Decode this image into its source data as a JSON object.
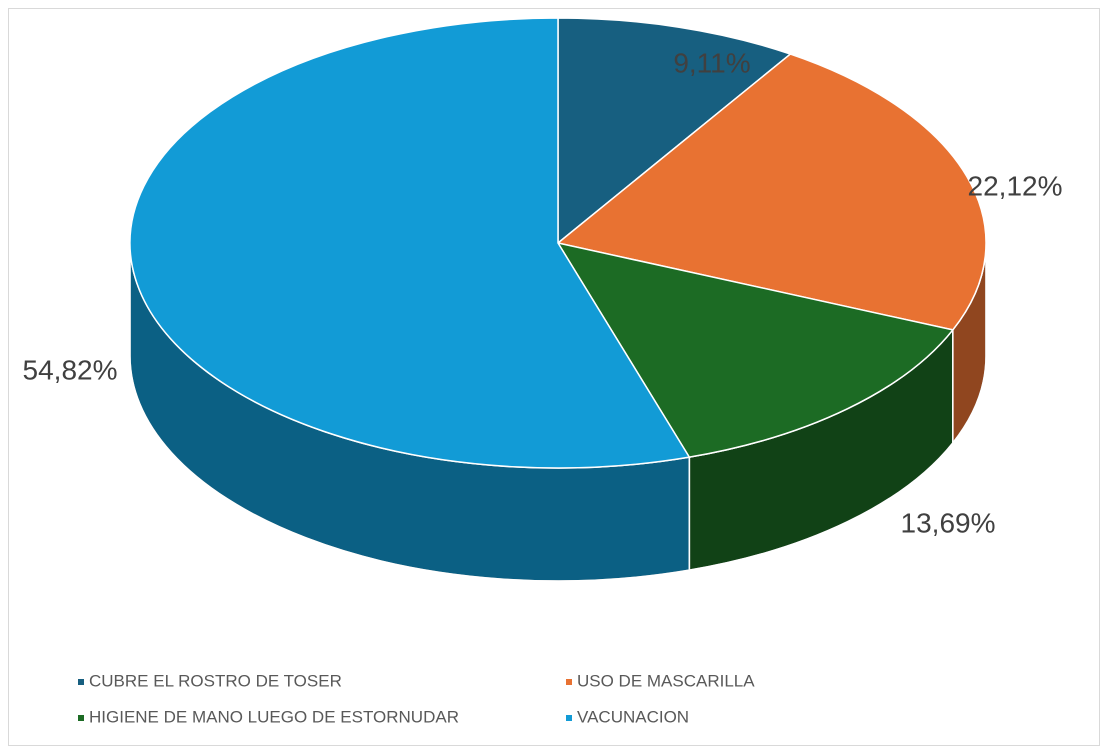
{
  "chart_data": {
    "type": "pie3d",
    "categories": [
      "CUBRE EL ROSTRO DE TOSER",
      "USO DE MASCARILLA",
      "HIGIENE DE MANO LUEGO DE ESTORNUDAR",
      "VACUNACION"
    ],
    "values": [
      9.11,
      22.12,
      13.69,
      54.82
    ],
    "value_labels": [
      "9,11%",
      "22,12%",
      "13,69%",
      "54,82%"
    ],
    "colors": [
      "#175f80",
      "#e87232",
      "#1c6b24",
      "#129bd6"
    ],
    "legend": "bottom"
  }
}
